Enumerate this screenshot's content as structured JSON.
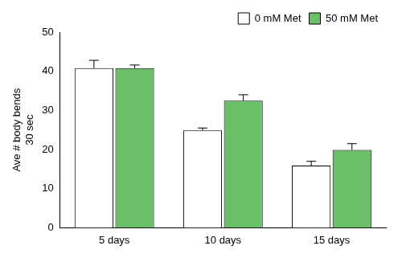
{
  "chart_data": {
    "type": "bar",
    "ylabel": [
      "Ave # body bends",
      "30 sec"
    ],
    "categories": [
      "5 days",
      "10 days",
      "15 days"
    ],
    "series": [
      {
        "name": "0 mM Met",
        "color": "#ffffff",
        "values": [
          40.8,
          24.9,
          15.9
        ],
        "errors": [
          2.0,
          0.6,
          1.1
        ]
      },
      {
        "name": "50 mM Met",
        "color": "#6cbf69",
        "values": [
          40.8,
          32.5,
          19.9
        ],
        "errors": [
          0.8,
          1.5,
          1.6
        ]
      }
    ],
    "ylim": [
      0,
      50
    ],
    "yticks": [
      0,
      10,
      20,
      30,
      40,
      50
    ],
    "grid": false,
    "legend": "upper right"
  }
}
